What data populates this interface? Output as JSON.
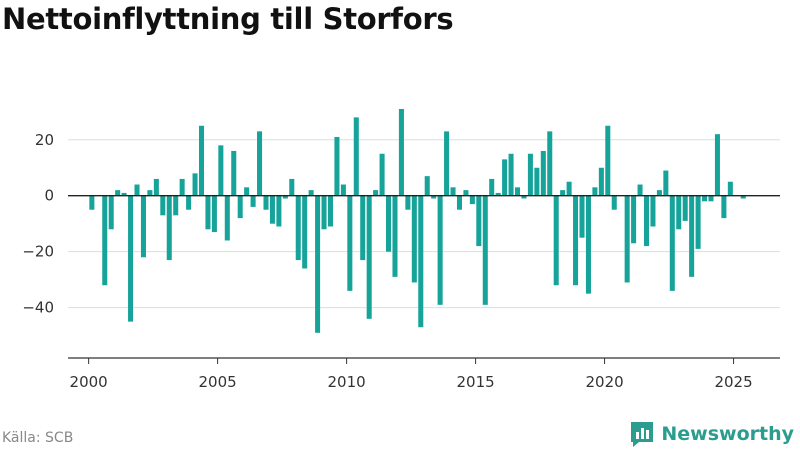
{
  "title": "Nettoinflyttning till Storfors",
  "source": "Källa: SCB",
  "brand": "Newsworthy",
  "colors": {
    "bar": "#16a39a",
    "zero_line": "#222222",
    "grid": "#dddddd",
    "brand": "#2a9d8f"
  },
  "chart_data": {
    "type": "bar",
    "title": "Nettoinflyttning till Storfors",
    "xlabel": "",
    "ylabel": "",
    "grid": true,
    "xlim": [
      1999.2,
      2026.8
    ],
    "ylim": [
      -58,
      36
    ],
    "yticks": [
      -40,
      -20,
      0,
      20
    ],
    "ytick_labels": [
      "−40",
      "−20",
      "0",
      "20"
    ],
    "xticks": [
      2000,
      2005,
      2010,
      2015,
      2020,
      2025
    ],
    "xtick_labels": [
      "2000",
      "2005",
      "2010",
      "2015",
      "2020",
      "2025"
    ],
    "series": [
      {
        "x": [
          2000.125,
          2000.625,
          2000.875,
          2001.125,
          2001.375,
          2001.625,
          2001.875,
          2002.125,
          2002.375,
          2002.625,
          2002.875,
          2003.125,
          2003.375,
          2003.625,
          2003.875,
          2004.125,
          2004.375,
          2004.625,
          2004.875,
          2005.125,
          2005.375,
          2005.625,
          2005.875,
          2006.125,
          2006.375,
          2006.625,
          2006.875,
          2007.125,
          2007.375,
          2007.625,
          2007.875,
          2008.125,
          2008.375,
          2008.625,
          2008.875,
          2009.125,
          2009.375,
          2009.625,
          2009.875,
          2010.125,
          2010.375,
          2010.625,
          2010.875,
          2011.125,
          2011.375,
          2011.625,
          2011.875,
          2012.125,
          2012.375,
          2012.625,
          2012.875,
          2013.125,
          2013.375,
          2013.625,
          2013.875,
          2014.125,
          2014.375,
          2014.625,
          2014.875,
          2015.125,
          2015.375,
          2015.625,
          2015.875,
          2016.125,
          2016.375,
          2016.625,
          2016.875,
          2017.125,
          2017.375,
          2017.625,
          2017.875,
          2018.125,
          2018.375,
          2018.625,
          2018.875,
          2019.125,
          2019.375,
          2019.625,
          2019.875,
          2020.125,
          2020.375,
          2020.625,
          2020.875,
          2021.125,
          2021.375,
          2021.625,
          2021.875,
          2022.125,
          2022.375,
          2022.625,
          2022.875,
          2023.125,
          2023.375,
          2023.625,
          2023.875,
          2024.125,
          2024.375,
          2024.625,
          2024.875,
          2025.125,
          2025.375
        ],
        "values": [
          -5,
          -32,
          -12,
          2,
          1,
          -45,
          4,
          -22,
          2,
          6,
          -7,
          -23,
          -7,
          6,
          -5,
          8,
          25,
          -12,
          -13,
          18,
          -16,
          16,
          -8,
          3,
          -4,
          23,
          -5,
          -10,
          -11,
          -1,
          6,
          -23,
          -26,
          2,
          -49,
          -12,
          -11,
          21,
          4,
          -34,
          28,
          -23,
          -44,
          2,
          15,
          -20,
          -29,
          31,
          -5,
          -31,
          -47,
          7,
          -1,
          -39,
          23,
          3,
          -5,
          2,
          -3,
          -18,
          -39,
          6,
          1,
          13,
          15,
          3,
          -1,
          15,
          10,
          16,
          23,
          -32,
          2,
          5,
          -32,
          -15,
          -35,
          3,
          10,
          25,
          -5,
          0,
          -31,
          -17,
          4,
          -18,
          -11,
          2,
          9,
          -34,
          -12,
          -9,
          -29,
          -19,
          -2,
          -2,
          22,
          -8,
          5,
          0,
          -1
        ]
      }
    ]
  }
}
